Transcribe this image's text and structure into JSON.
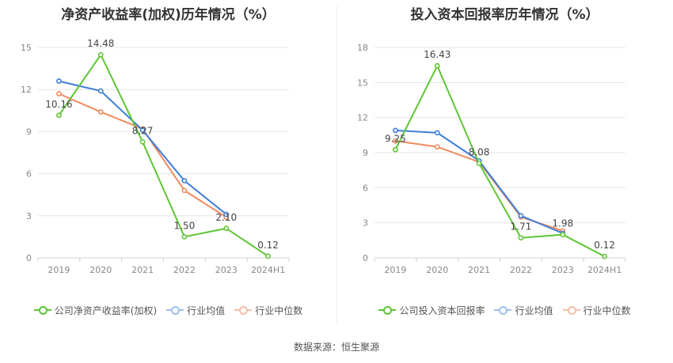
{
  "chart_data": [
    {
      "type": "line",
      "title": "净资产收益率(加权)历年情况（%）",
      "categories": [
        "2019",
        "2020",
        "2021",
        "2022",
        "2023",
        "2024H1"
      ],
      "ylim": [
        0,
        15
      ],
      "yticks": [
        "0",
        "3",
        "6",
        "9",
        "12",
        "15"
      ],
      "grid": true,
      "legend_position": "bottom",
      "series": [
        {
          "name": "公司净资产收益率(加权)",
          "color": "#5dc634",
          "values": [
            10.16,
            14.48,
            8.27,
            1.5,
            2.1,
            0.12
          ],
          "labels": [
            "10.16",
            "14.48",
            "8.27",
            "1.50",
            "2.10",
            "0.12"
          ]
        },
        {
          "name": "行业均值",
          "color": "#3f7ed8",
          "values": [
            12.6,
            11.9,
            9.1,
            5.5,
            3.1,
            null
          ]
        },
        {
          "name": "行业中位数",
          "color": "#f08a5d",
          "values": [
            11.7,
            10.4,
            9.2,
            4.8,
            2.9,
            null
          ]
        }
      ]
    },
    {
      "type": "line",
      "title": "投入资本回报率历年情况（%）",
      "categories": [
        "2019",
        "2020",
        "2021",
        "2022",
        "2023",
        "2024H1"
      ],
      "ylim": [
        0,
        18
      ],
      "yticks": [
        "0",
        "3",
        "6",
        "9",
        "12",
        "15",
        "18"
      ],
      "grid": true,
      "legend_position": "bottom",
      "series": [
        {
          "name": "公司投入资本回报率",
          "color": "#5dc634",
          "values": [
            9.25,
            16.43,
            8.08,
            1.71,
            1.98,
            0.12
          ],
          "labels": [
            "9.25",
            "16.43",
            "8.08",
            "1.71",
            "1.98",
            "0.12"
          ]
        },
        {
          "name": "行业均值",
          "color": "#3f7ed8",
          "values": [
            10.9,
            10.7,
            8.3,
            3.6,
            2.1,
            null
          ]
        },
        {
          "name": "行业中位数",
          "color": "#f08a5d",
          "values": [
            10.0,
            9.5,
            8.2,
            3.5,
            2.3,
            null
          ]
        }
      ]
    }
  ],
  "footer": {
    "source": "数据来源：恒生聚源"
  }
}
